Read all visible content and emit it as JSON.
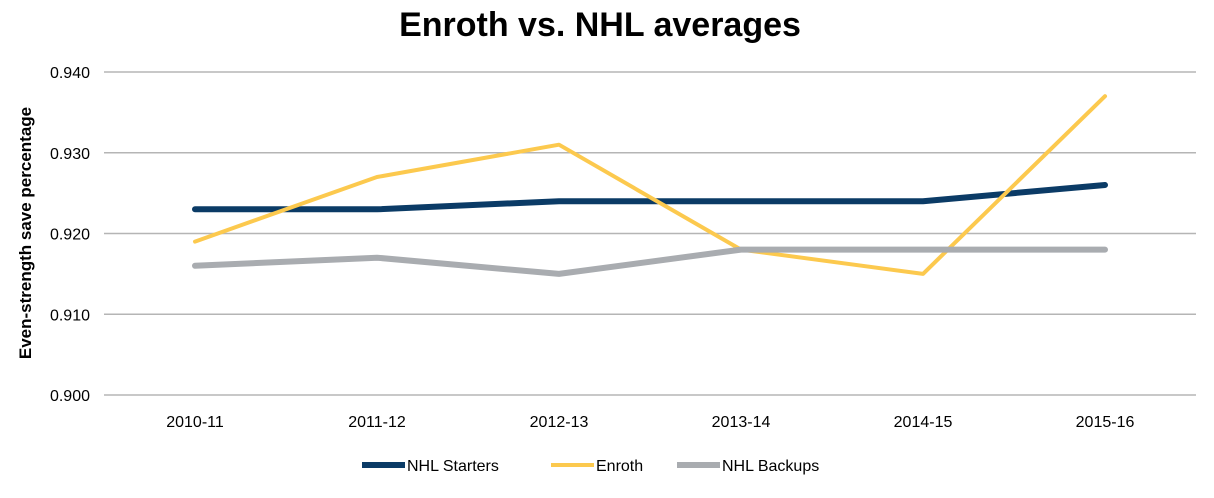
{
  "chart_data": {
    "type": "line",
    "title": "Enroth vs. NHL averages",
    "ylabel": "Even-strength save percentage",
    "xlabel": "",
    "categories": [
      "2010-11",
      "2011-12",
      "2012-13",
      "2013-14",
      "2014-15",
      "2015-16"
    ],
    "ylim": [
      0.9,
      0.94
    ],
    "yticks": [
      "0.900",
      "0.910",
      "0.920",
      "0.930",
      "0.940"
    ],
    "grid": true,
    "legend_position": "bottom",
    "series": [
      {
        "name": "NHL Starters",
        "color": "#0b3b66",
        "values": [
          0.923,
          0.923,
          0.924,
          0.924,
          0.924,
          0.926
        ]
      },
      {
        "name": "Enroth",
        "color": "#fcc94e",
        "values": [
          0.919,
          0.927,
          0.931,
          0.918,
          0.915,
          0.937
        ]
      },
      {
        "name": "NHL Backups",
        "color": "#a9acb0",
        "values": [
          0.916,
          0.917,
          0.915,
          0.918,
          0.918,
          0.918
        ]
      }
    ]
  }
}
